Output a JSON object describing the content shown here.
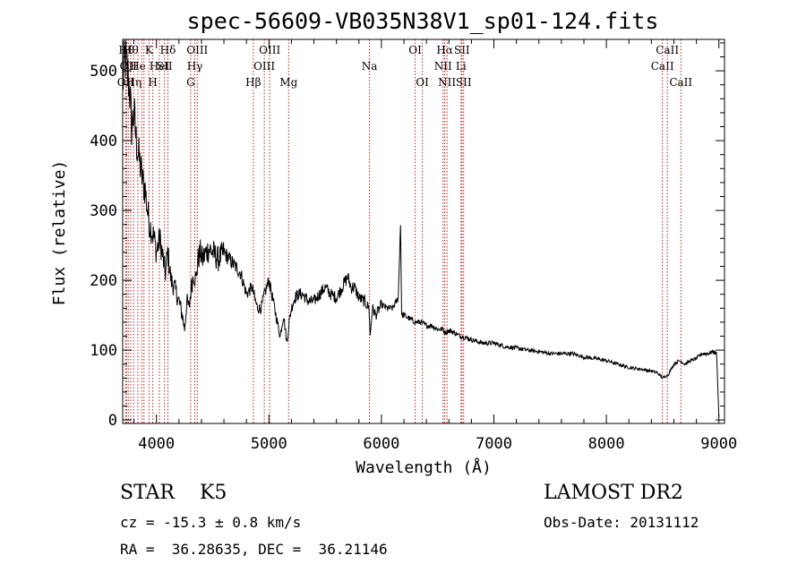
{
  "chart_data": {
    "type": "line",
    "title": "spec-56609-VB035N38V1_sp01-124.fits",
    "xlabel": "Wavelength (Å)",
    "ylabel": "Flux (relative)",
    "xlim": [
      3700,
      9050
    ],
    "ylim": [
      -5,
      545
    ],
    "x_ticks": [
      4000,
      5000,
      6000,
      7000,
      8000,
      9000
    ],
    "y_ticks": [
      0,
      100,
      200,
      300,
      400,
      500
    ],
    "series": [
      {
        "x": [
          3700,
          3720,
          3740,
          3760,
          3780,
          3800,
          3820,
          3840,
          3860,
          3880,
          3900,
          3920,
          3940,
          3960,
          3980,
          4000,
          4030,
          4060,
          4080,
          4100,
          4130,
          4160,
          4200,
          4230,
          4250,
          4270,
          4290,
          4310,
          4330,
          4350,
          4370,
          4390,
          4410,
          4440,
          4470,
          4500,
          4550,
          4600,
          4650,
          4700,
          4750,
          4800,
          4850,
          4880,
          4900,
          4930,
          4960,
          5000,
          5050,
          5100,
          5130,
          5160,
          5180,
          5200,
          5230,
          5260,
          5300,
          5350,
          5400,
          5450,
          5500,
          5550,
          5600,
          5650,
          5700,
          5730,
          5760,
          5800,
          5850,
          5890,
          5900,
          5920,
          5950,
          6000,
          6050,
          6100,
          6150,
          6170,
          6180,
          6200,
          6250,
          6300,
          6350,
          6400,
          6450,
          6500,
          6550,
          6563,
          6600,
          6650,
          6700,
          6750,
          6800,
          6900,
          7000,
          7100,
          7200,
          7300,
          7400,
          7500,
          7600,
          7700,
          7800,
          7900,
          8000,
          8100,
          8200,
          8300,
          8400,
          8450,
          8500,
          8550,
          8600,
          8650,
          8700,
          8750,
          8800,
          8850,
          8900,
          8950,
          8980,
          9000
        ],
        "y": [
          480,
          520,
          500,
          480,
          420,
          440,
          400,
          380,
          360,
          340,
          330,
          300,
          280,
          270,
          260,
          240,
          260,
          230,
          210,
          240,
          200,
          190,
          170,
          150,
          130,
          170,
          160,
          190,
          210,
          200,
          230,
          240,
          230,
          240,
          245,
          240,
          230,
          240,
          230,
          220,
          210,
          180,
          190,
          170,
          160,
          160,
          180,
          200,
          160,
          120,
          150,
          110,
          140,
          160,
          175,
          180,
          180,
          170,
          170,
          180,
          190,
          180,
          175,
          190,
          205,
          190,
          190,
          175,
          170,
          160,
          120,
          160,
          150,
          165,
          160,
          160,
          175,
          280,
          150,
          150,
          145,
          140,
          140,
          135,
          135,
          130,
          130,
          125,
          128,
          125,
          120,
          118,
          115,
          110,
          110,
          105,
          103,
          100,
          98,
          95,
          95,
          95,
          90,
          88,
          85,
          80,
          75,
          73,
          70,
          68,
          60,
          65,
          80,
          85,
          80,
          85,
          88,
          95,
          95,
          98,
          95,
          5
        ]
      }
    ],
    "line_markers": [
      {
        "wl": 3727,
        "label": "OII",
        "row": 2
      },
      {
        "wl": 3734,
        "label": "Hθ",
        "row": 0
      },
      {
        "wl": 3750,
        "label": "OII",
        "row": 1
      },
      {
        "wl": 3771,
        "label": "Hθ",
        "row": 0
      },
      {
        "wl": 3798,
        "label": "Hη",
        "row": 2
      },
      {
        "wl": 3835,
        "label": "He",
        "row": 1
      },
      {
        "wl": 3869,
        "label": "",
        "row": 1
      },
      {
        "wl": 3889,
        "label": "",
        "row": 2
      },
      {
        "wl": 3934,
        "label": "K",
        "row": 0
      },
      {
        "wl": 3968,
        "label": "H",
        "row": 2
      },
      {
        "wl": 4026,
        "label": "HeI",
        "row": 1
      },
      {
        "wl": 4072,
        "label": "SII",
        "row": 1
      },
      {
        "wl": 4102,
        "label": "Hδ",
        "row": 0
      },
      {
        "wl": 4304,
        "label": "G",
        "row": 2
      },
      {
        "wl": 4341,
        "label": "Hγ",
        "row": 1
      },
      {
        "wl": 4363,
        "label": "OIII",
        "row": 0
      },
      {
        "wl": 4861,
        "label": "Hβ",
        "row": 2
      },
      {
        "wl": 4959,
        "label": "OIII",
        "row": 1
      },
      {
        "wl": 5007,
        "label": "OIII",
        "row": 0
      },
      {
        "wl": 5175,
        "label": "Mg",
        "row": 2
      },
      {
        "wl": 5894,
        "label": "Na",
        "row": 1
      },
      {
        "wl": 6300,
        "label": "OI",
        "row": 0
      },
      {
        "wl": 6364,
        "label": "OI",
        "row": 2
      },
      {
        "wl": 6548,
        "label": "NII",
        "row": 1
      },
      {
        "wl": 6563,
        "label": "Hα",
        "row": 0
      },
      {
        "wl": 6583,
        "label": "NII",
        "row": 2
      },
      {
        "wl": 6708,
        "label": "Li",
        "row": 1
      },
      {
        "wl": 6716,
        "label": "SII",
        "row": 0
      },
      {
        "wl": 6731,
        "label": "SII",
        "row": 2
      },
      {
        "wl": 8498,
        "label": "CaII",
        "row": 1
      },
      {
        "wl": 8542,
        "label": "CaII",
        "row": 0
      },
      {
        "wl": 8662,
        "label": "CaII",
        "row": 2
      }
    ]
  },
  "info": {
    "class_text": "STAR    K5",
    "cz_text": "cz = -15.3 ± 0.8 km/s",
    "radec_text": "RA =  36.28635, DEC =  36.21146",
    "survey_text": "LAMOST DR2",
    "obsdate_text": "Obs-Date: 20131112"
  }
}
